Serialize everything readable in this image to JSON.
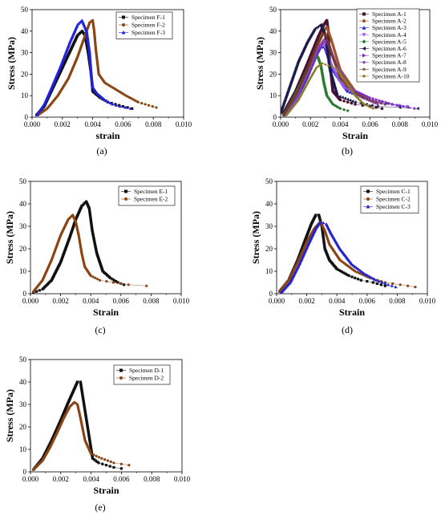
{
  "chart_data": [
    {
      "type": "scatter",
      "panel_label": "(a)",
      "xlabel": "strain",
      "ylabel": "Stress (MPa)",
      "xlim": [
        0,
        0.01
      ],
      "ylim": [
        0,
        50
      ],
      "xticks": [
        "0.000",
        "0.002",
        "0.004",
        "0.006",
        "0.008",
        "0.010"
      ],
      "yticks": [
        "0",
        "10",
        "20",
        "30",
        "40",
        "50"
      ],
      "legend_position": "top-right",
      "series": [
        {
          "name": "Specimen F-1",
          "color": "#111111",
          "marker": "square",
          "x": [
            0.0003,
            0.0008,
            0.0014,
            0.002,
            0.0026,
            0.003,
            0.0033,
            0.0035,
            0.0037,
            0.0039,
            0.004,
            0.0045,
            0.005,
            0.0055,
            0.006,
            0.0066
          ],
          "y": [
            1,
            5,
            14,
            23,
            32,
            38,
            40,
            38,
            30,
            20,
            12,
            9,
            7,
            6,
            5,
            4
          ]
        },
        {
          "name": "Specimen F-2",
          "color": "#8B4513",
          "marker": "circle",
          "x": [
            0.0004,
            0.001,
            0.0017,
            0.0024,
            0.003,
            0.0035,
            0.0038,
            0.004,
            0.0041,
            0.0042,
            0.0044,
            0.0048,
            0.0055,
            0.0062,
            0.007,
            0.0077,
            0.0082
          ],
          "y": [
            1,
            4,
            10,
            18,
            28,
            38,
            44,
            45,
            40,
            32,
            20,
            16,
            13,
            10,
            7,
            5.5,
            4.5
          ]
        },
        {
          "name": "Specimen F-3",
          "color": "#2222DD",
          "marker": "triangle",
          "x": [
            0.0003,
            0.0008,
            0.0013,
            0.0019,
            0.0025,
            0.003,
            0.0033,
            0.0036,
            0.0038,
            0.0039,
            0.004,
            0.0043,
            0.0048,
            0.0053,
            0.0058,
            0.0065
          ],
          "y": [
            1,
            6,
            14,
            24,
            35,
            43,
            45,
            40,
            30,
            20,
            14,
            11,
            8,
            6,
            5,
            4
          ]
        }
      ]
    },
    {
      "type": "scatter",
      "panel_label": "(b)",
      "xlabel": "Strain",
      "ylabel": "Stress (MPa)",
      "xlim": [
        0,
        0.01
      ],
      "ylim": [
        0,
        50
      ],
      "xticks": [
        "0.000",
        "0.002",
        "0.004",
        "0.006",
        "0.008",
        "0.010"
      ],
      "yticks": [
        "0",
        "10",
        "20",
        "30",
        "40",
        "50"
      ],
      "legend_position": "top-right",
      "series": [
        {
          "name": "Specimen A-1",
          "color": "#4B1030",
          "marker": "square",
          "x": [
            0.0002,
            0.001,
            0.0018,
            0.0025,
            0.0029,
            0.0031,
            0.0032,
            0.0033,
            0.0035,
            0.004,
            0.005,
            0.006,
            0.0068
          ],
          "y": [
            2,
            12,
            25,
            37,
            43,
            45,
            40,
            25,
            12,
            8,
            6,
            5,
            4
          ]
        },
        {
          "name": "Specimen A-2",
          "color": "#A0522D",
          "marker": "circle",
          "x": [
            0.0002,
            0.001,
            0.0018,
            0.0025,
            0.0029,
            0.0031,
            0.0034,
            0.004,
            0.005,
            0.006,
            0.007
          ],
          "y": [
            1,
            10,
            22,
            34,
            40,
            42,
            36,
            22,
            12,
            8,
            6
          ]
        },
        {
          "name": "Specimen A-3",
          "color": "#2222CC",
          "marker": "triangle",
          "x": [
            0.0003,
            0.0011,
            0.0018,
            0.0024,
            0.0027,
            0.003,
            0.0035,
            0.0045,
            0.006,
            0.0075,
            0.0085
          ],
          "y": [
            1,
            9,
            19,
            29,
            33,
            32,
            22,
            12,
            8,
            6,
            5
          ]
        },
        {
          "name": "Specimen A-4",
          "color": "#9B59F0",
          "marker": "triangle-down",
          "x": [
            0.0003,
            0.0011,
            0.0018,
            0.0024,
            0.0028,
            0.003,
            0.0034,
            0.0042,
            0.0055,
            0.007,
            0.0085
          ],
          "y": [
            1,
            9,
            20,
            30,
            34,
            33,
            24,
            14,
            9,
            6,
            5
          ]
        },
        {
          "name": "Specimen A-5",
          "color": "#2F7A2F",
          "marker": "diamond",
          "x": [
            0.0002,
            0.0008,
            0.0013,
            0.0018,
            0.0022,
            0.0025,
            0.0027,
            0.0029,
            0.0031,
            0.0035,
            0.004,
            0.0045
          ],
          "y": [
            1,
            8,
            15,
            22,
            27,
            28,
            24,
            16,
            10,
            6,
            4,
            3
          ]
        },
        {
          "name": "Specimen A-6",
          "color": "#1B1B4A",
          "marker": "triangle-left",
          "x": [
            0.0,
            0.0006,
            0.0012,
            0.0018,
            0.0023,
            0.0027,
            0.003,
            0.0033,
            0.0038,
            0.005,
            0.0065,
            0.008,
            0.0092
          ],
          "y": [
            2,
            14,
            26,
            35,
            41,
            43,
            38,
            22,
            10,
            7,
            5,
            4.5,
            4
          ]
        },
        {
          "name": "Specimen A-7",
          "color": "#7B2CBF",
          "marker": "triangle-right",
          "x": [
            0.0003,
            0.0011,
            0.0019,
            0.0025,
            0.0029,
            0.0032,
            0.0037,
            0.0045,
            0.006,
            0.0075,
            0.009
          ],
          "y": [
            1,
            10,
            21,
            31,
            35,
            34,
            25,
            14,
            9,
            6,
            4
          ]
        },
        {
          "name": "Specimen A-8",
          "color": "#8E44AD",
          "marker": "hexagon",
          "x": [
            0.0003,
            0.0011,
            0.0019,
            0.0025,
            0.0029,
            0.0032,
            0.0036,
            0.0045,
            0.0055,
            0.0065
          ],
          "y": [
            1,
            11,
            22,
            32,
            36,
            35,
            26,
            15,
            9,
            6
          ]
        },
        {
          "name": "Specimen A-9",
          "color": "#6B3A1E",
          "marker": "star",
          "x": [
            0.0002,
            0.001,
            0.0018,
            0.0024,
            0.0028,
            0.003,
            0.0034,
            0.004,
            0.0048,
            0.0056,
            0.0064,
            0.007
          ],
          "y": [
            1,
            10,
            22,
            33,
            38,
            39,
            30,
            18,
            12,
            9,
            7,
            6
          ]
        },
        {
          "name": "Specimen A-10",
          "color": "#8B7D2A",
          "marker": "pentagon",
          "x": [
            0.0004,
            0.0012,
            0.0019,
            0.0024,
            0.0028,
            0.0032,
            0.0037,
            0.0043,
            0.005,
            0.0056,
            0.0062
          ],
          "y": [
            1,
            8,
            17,
            23,
            25,
            24,
            23,
            17,
            10,
            6,
            4
          ]
        }
      ]
    },
    {
      "type": "scatter",
      "panel_label": "(c)",
      "xlabel": "Strain",
      "ylabel": "Stress (MPa)",
      "xlim": [
        0,
        0.01
      ],
      "ylim": [
        0,
        50
      ],
      "xticks": [
        "0.000",
        "0.002",
        "0.004",
        "0.006",
        "0.008",
        "0.010"
      ],
      "yticks": [
        "0",
        "10",
        "20",
        "30",
        "40",
        "50"
      ],
      "legend_position": "top-right",
      "series": [
        {
          "name": "Specimen E-1",
          "color": "#111111",
          "marker": "square",
          "x": [
            0.0002,
            0.0008,
            0.0014,
            0.002,
            0.0026,
            0.003,
            0.0034,
            0.0037,
            0.0039,
            0.0041,
            0.0044,
            0.0048,
            0.0053,
            0.0058,
            0.0062
          ],
          "y": [
            0.5,
            2,
            6,
            14,
            25,
            33,
            39,
            41,
            38,
            28,
            18,
            10,
            7,
            5,
            4
          ]
        },
        {
          "name": "Specimen E-2",
          "color": "#8B4513",
          "marker": "circle",
          "x": [
            0.0002,
            0.0008,
            0.0014,
            0.002,
            0.0025,
            0.0028,
            0.003,
            0.0032,
            0.0034,
            0.0036,
            0.004,
            0.0046,
            0.0055,
            0.0065,
            0.0077
          ],
          "y": [
            1,
            6,
            15,
            26,
            33,
            35,
            32,
            26,
            18,
            12,
            8,
            6,
            5,
            4,
            3.5
          ]
        }
      ]
    },
    {
      "type": "scatter",
      "panel_label": "(d)",
      "xlabel": "Strain",
      "ylabel": "Stress (MPa)",
      "xlim": [
        0,
        0.01
      ],
      "ylim": [
        0,
        50
      ],
      "xticks": [
        "0.000",
        "0.002",
        "0.004",
        "0.006",
        "0.008",
        "0.010"
      ],
      "yticks": [
        "0",
        "10",
        "20",
        "30",
        "40",
        "50"
      ],
      "legend_position": "top-right",
      "series": [
        {
          "name": "Specimen C-1",
          "color": "#111111",
          "marker": "square",
          "x": [
            0.0002,
            0.0008,
            0.0014,
            0.0019,
            0.0023,
            0.0026,
            0.0028,
            0.003,
            0.0032,
            0.0035,
            0.004,
            0.0048,
            0.0056,
            0.0064,
            0.0072
          ],
          "y": [
            1,
            6,
            15,
            24,
            31,
            35,
            35,
            30,
            20,
            15,
            11,
            8,
            6,
            5,
            3.5
          ]
        },
        {
          "name": "Specimen C-2",
          "color": "#8B4513",
          "marker": "circle",
          "x": [
            0.0002,
            0.0008,
            0.0014,
            0.002,
            0.0025,
            0.0029,
            0.0032,
            0.0035,
            0.0042,
            0.0052,
            0.0062,
            0.0072,
            0.0082,
            0.0092
          ],
          "y": [
            1,
            6,
            14,
            23,
            29,
            32,
            28,
            22,
            15,
            10,
            7,
            5,
            4,
            3
          ]
        },
        {
          "name": "Specimen C-3",
          "color": "#2222CC",
          "marker": "triangle",
          "x": [
            0.0003,
            0.0009,
            0.0015,
            0.0021,
            0.0026,
            0.0029,
            0.0033,
            0.0036,
            0.0042,
            0.005,
            0.0058,
            0.0066,
            0.0074,
            0.0079
          ],
          "y": [
            0.5,
            5,
            13,
            22,
            29,
            32,
            31,
            27,
            20,
            13,
            9,
            6,
            4,
            3
          ]
        }
      ]
    },
    {
      "type": "scatter",
      "panel_label": "(e)",
      "xlabel": "Strain",
      "ylabel": "Stress (MPa)",
      "xlim": [
        0,
        0.01
      ],
      "ylim": [
        0,
        50
      ],
      "xticks": [
        "0.000",
        "0.002",
        "0.004",
        "0.006",
        "0.008",
        "0.010"
      ],
      "yticks": [
        "0",
        "10",
        "20",
        "30",
        "40",
        "50"
      ],
      "legend_position": "top-right",
      "series": [
        {
          "name": "Specimen D-1",
          "color": "#111111",
          "marker": "square",
          "x": [
            0.0002,
            0.0008,
            0.0014,
            0.002,
            0.0025,
            0.0029,
            0.0031,
            0.0033,
            0.0041,
            0.0045,
            0.005,
            0.0055,
            0.006
          ],
          "y": [
            1,
            6,
            14,
            23,
            31,
            37,
            40,
            40,
            6,
            4,
            3,
            2,
            1.5
          ]
        },
        {
          "name": "Specimen D-2",
          "color": "#8B4513",
          "marker": "circle",
          "x": [
            0.0002,
            0.0008,
            0.0013,
            0.0018,
            0.0022,
            0.0026,
            0.0029,
            0.0031,
            0.0033,
            0.0036,
            0.004,
            0.0047,
            0.0055,
            0.0065
          ],
          "y": [
            1,
            5,
            11,
            18,
            24,
            29,
            31,
            30,
            24,
            14,
            8,
            6,
            4,
            3
          ]
        }
      ]
    }
  ]
}
